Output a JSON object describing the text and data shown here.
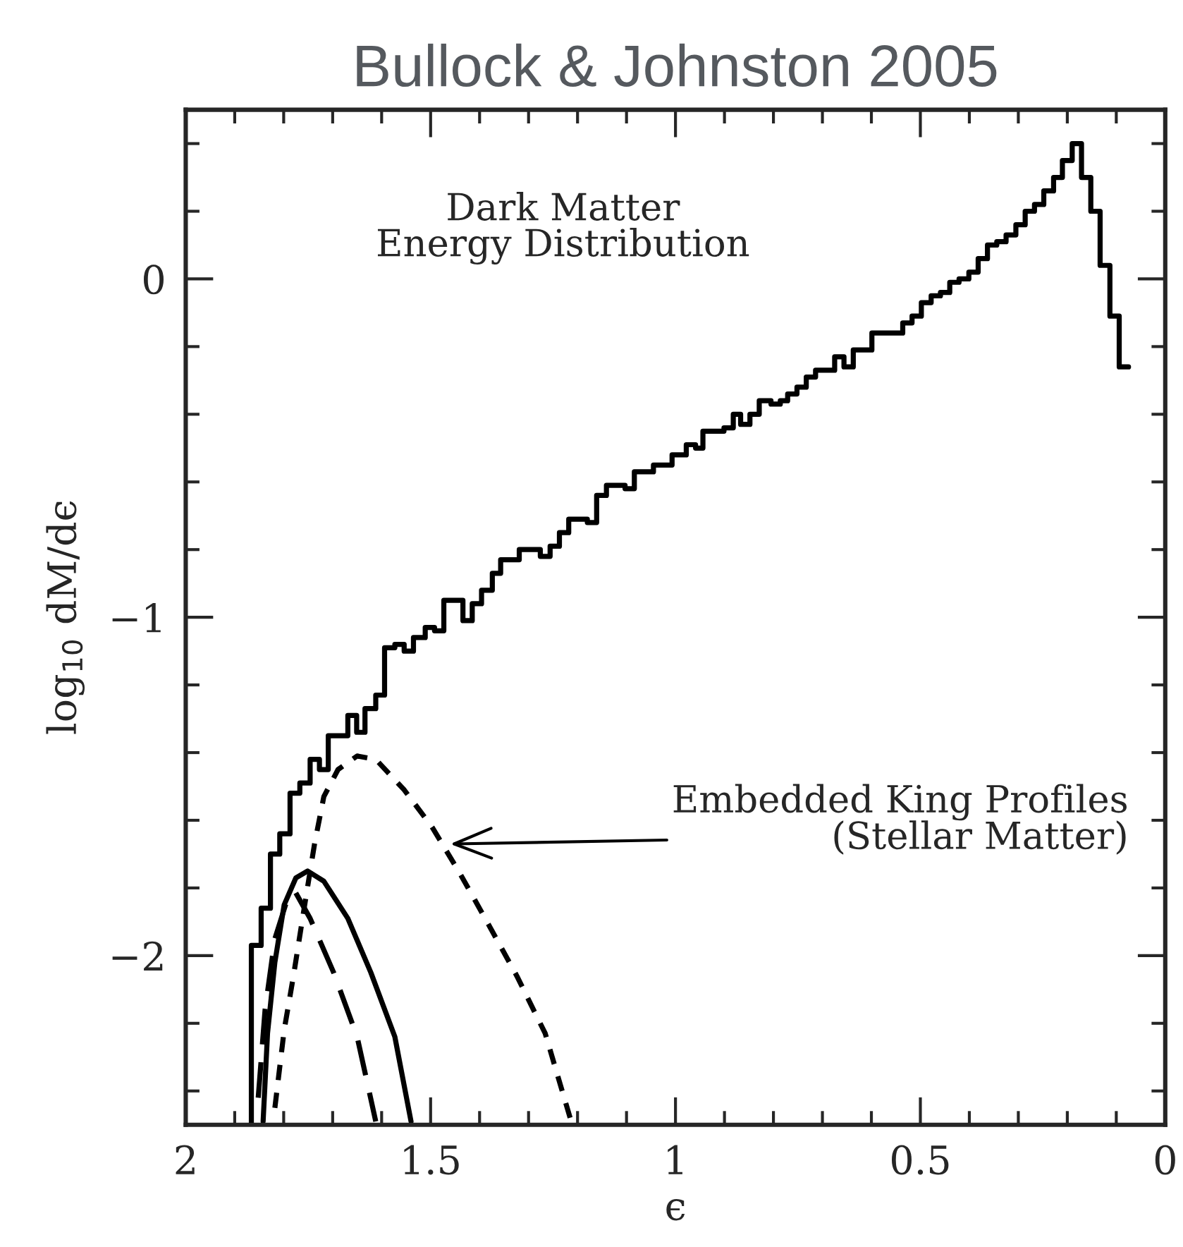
{
  "chart_data": {
    "type": "line",
    "title": "Bullock & Johnston 2005",
    "xlabel": "ϵ",
    "ylabel": "log$_{10}$ dM/dϵ",
    "xlim": [
      2,
      0
    ],
    "ylim": [
      -2.5,
      0.5
    ],
    "xticks": [
      2,
      {
        "value": 1.9,
        "label": null
      },
      {
        "value": 1.8,
        "label": null
      },
      {
        "value": 1.7,
        "label": null
      },
      {
        "value": 1.6,
        "label": null
      },
      1.5,
      {
        "value": 1.4,
        "label": null
      },
      {
        "value": 1.3,
        "label": null
      },
      {
        "value": 1.2,
        "label": null
      },
      {
        "value": 1.1,
        "label": null
      },
      1,
      {
        "value": 0.9,
        "label": null
      },
      {
        "value": 0.8,
        "label": null
      },
      {
        "value": 0.7,
        "label": null
      },
      {
        "value": 0.6,
        "label": null
      },
      0.5,
      {
        "value": 0.4,
        "label": null
      },
      {
        "value": 0.3,
        "label": null
      },
      {
        "value": 0.2,
        "label": null
      },
      {
        "value": 0.1,
        "label": null
      },
      0
    ],
    "yticks": [
      {
        "value": -2.4,
        "label": null
      },
      {
        "value": -2.2,
        "label": null
      },
      {
        "value": -2,
        "label": "−2"
      },
      {
        "value": -1.8,
        "label": null
      },
      {
        "value": -1.6,
        "label": null
      },
      {
        "value": -1.4,
        "label": null
      },
      {
        "value": -1.2,
        "label": null
      },
      {
        "value": -1,
        "label": "−1"
      },
      {
        "value": -0.8,
        "label": null
      },
      {
        "value": -0.6,
        "label": null
      },
      {
        "value": -0.4,
        "label": null
      },
      {
        "value": -0.2,
        "label": null
      },
      0,
      {
        "value": 0.2,
        "label": null
      },
      {
        "value": 0.4,
        "label": null
      }
    ],
    "grid": false,
    "legend": false,
    "series": [
      {
        "type": "step",
        "color": "#000000",
        "line_style": "solid",
        "x": [
          1.866,
          1.866,
          1.846,
          1.827,
          1.808,
          1.787,
          1.767,
          1.746,
          1.727,
          1.709,
          1.669,
          1.651,
          1.634,
          1.612,
          1.594,
          1.573,
          1.554,
          1.535,
          1.511,
          1.492,
          1.473,
          1.434,
          1.415,
          1.396,
          1.374,
          1.357,
          1.319,
          1.276,
          1.256,
          1.237,
          1.218,
          1.18,
          1.161,
          1.141,
          1.103,
          1.084,
          1.045,
          1.007,
          0.978,
          0.959,
          0.944,
          0.901,
          0.882,
          0.867,
          0.848,
          0.829,
          0.805,
          0.786,
          0.771,
          0.752,
          0.733,
          0.714,
          0.675,
          0.656,
          0.637,
          0.599,
          0.536,
          0.517,
          0.498,
          0.478,
          0.459,
          0.44,
          0.421,
          0.401,
          0.382,
          0.363,
          0.344,
          0.325,
          0.305,
          0.286,
          0.267,
          0.248,
          0.228,
          0.21,
          0.19,
          0.171,
          0.152,
          0.133,
          0.113,
          0.094,
          0.075
        ],
        "values": [
          -2.5,
          -1.97,
          -1.86,
          -1.7,
          -1.64,
          -1.52,
          -1.49,
          -1.42,
          -1.45,
          -1.35,
          -1.29,
          -1.34,
          -1.27,
          -1.23,
          -1.09,
          -1.08,
          -1.1,
          -1.06,
          -1.03,
          -1.04,
          -0.95,
          -1.01,
          -0.96,
          -0.92,
          -0.87,
          -0.83,
          -0.8,
          -0.82,
          -0.79,
          -0.75,
          -0.71,
          -0.72,
          -0.64,
          -0.61,
          -0.62,
          -0.57,
          -0.55,
          -0.52,
          -0.49,
          -0.5,
          -0.45,
          -0.44,
          -0.4,
          -0.43,
          -0.4,
          -0.36,
          -0.37,
          -0.36,
          -0.34,
          -0.32,
          -0.29,
          -0.27,
          -0.23,
          -0.26,
          -0.21,
          -0.16,
          -0.13,
          -0.11,
          -0.07,
          -0.05,
          -0.04,
          -0.01,
          0.0,
          0.02,
          0.06,
          0.1,
          0.11,
          0.13,
          0.16,
          0.2,
          0.22,
          0.26,
          0.3,
          0.35,
          0.4,
          0.3,
          0.2,
          0.04,
          -0.11,
          -0.26,
          -0.26
        ]
      },
      {
        "color": "#000000",
        "line_style": "dotted",
        "x": [
          1.818,
          1.799,
          1.78,
          1.756,
          1.737,
          1.718,
          1.689,
          1.65,
          1.612,
          1.554,
          1.497,
          1.439,
          1.381,
          1.324,
          1.266,
          1.213
        ],
        "values": [
          -2.45,
          -2.22,
          -2.06,
          -1.84,
          -1.67,
          -1.53,
          -1.45,
          -1.41,
          -1.42,
          -1.51,
          -1.62,
          -1.76,
          -1.91,
          -2.06,
          -2.23,
          -2.49
        ]
      },
      {
        "color": "#000000",
        "line_style": "solid",
        "x": [
          1.842,
          1.833,
          1.818,
          1.799,
          1.775,
          1.751,
          1.718,
          1.669,
          1.622,
          1.573,
          1.54
        ],
        "values": [
          -2.49,
          -2.23,
          -2.02,
          -1.85,
          -1.77,
          -1.75,
          -1.78,
          -1.89,
          -2.05,
          -2.24,
          -2.49
        ]
      },
      {
        "color": "#000000",
        "line_style": "dashed",
        "x": [
          1.852,
          1.838,
          1.818,
          1.794,
          1.777,
          1.746,
          1.698,
          1.65,
          1.612
        ],
        "values": [
          -2.42,
          -2.16,
          -1.95,
          -1.84,
          -1.81,
          -1.89,
          -2.05,
          -2.24,
          -2.49
        ]
      }
    ],
    "annotations": [
      "Dark Matter\nEnergy Distribution",
      {
        "text": "Embedded King Profiles\n(Stellar Matter)",
        "x": 1.46,
        "y": -1.67
      }
    ]
  }
}
